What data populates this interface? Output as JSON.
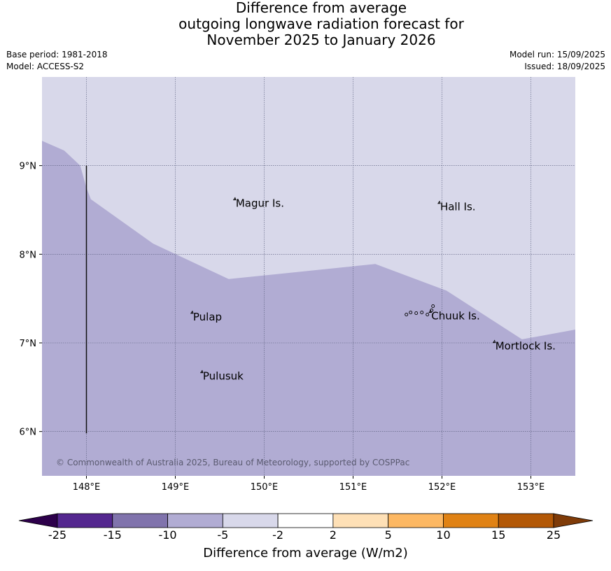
{
  "title": {
    "line1": "Difference from average",
    "line2": "outgoing longwave radiation forecast for",
    "line3": "November 2025 to January 2026"
  },
  "meta_left": {
    "base_period": "Base period: 1981-2018",
    "model": "Model: ACCESS-S2"
  },
  "meta_right": {
    "model_run": "Model run: 15/09/2025",
    "issued": "Issued: 18/09/2025"
  },
  "map": {
    "lon_range": [
      147.5,
      153.5
    ],
    "lat_range": [
      5.5,
      10.0
    ],
    "lon_ticks": [
      {
        "value": 148,
        "label": "148°E"
      },
      {
        "value": 149,
        "label": "149°E"
      },
      {
        "value": 150,
        "label": "150°E"
      },
      {
        "value": 151,
        "label": "151°E"
      },
      {
        "value": 152,
        "label": "152°E"
      },
      {
        "value": 153,
        "label": "153°E"
      }
    ],
    "lat_ticks": [
      {
        "value": 9,
        "label": "9°N"
      },
      {
        "value": 8,
        "label": "8°N"
      },
      {
        "value": 7,
        "label": "7°N"
      },
      {
        "value": 6,
        "label": "6°N"
      }
    ],
    "places": [
      {
        "name": "Magur Is.",
        "lon": 149.68,
        "lat": 8.55
      },
      {
        "name": "Hall Is.",
        "lon": 151.98,
        "lat": 8.51
      },
      {
        "name": "Pulap",
        "lon": 149.2,
        "lat": 7.27
      },
      {
        "name": "Chuuk Is.",
        "lon": 151.88,
        "lat": 7.28
      },
      {
        "name": "Mortlock Is.",
        "lon": 152.6,
        "lat": 6.94
      },
      {
        "name": "Pulusuk",
        "lon": 149.31,
        "lat": 6.6
      }
    ],
    "anomaly_bands": [
      {
        "range": "-5 to -2",
        "color": "#d8d8ea"
      },
      {
        "range": "-10 to -5",
        "color": "#b1acd3"
      }
    ],
    "boundary_between_bands": [
      [
        147.5,
        9.28
      ],
      [
        147.75,
        9.17
      ],
      [
        147.93,
        9.0
      ],
      [
        148.0,
        8.75
      ],
      [
        148.05,
        8.62
      ],
      [
        148.75,
        8.12
      ],
      [
        149.6,
        7.72
      ],
      [
        151.25,
        7.89
      ],
      [
        152.05,
        7.59
      ],
      [
        152.9,
        7.04
      ],
      [
        153.5,
        7.15
      ]
    ],
    "boundary_line": {
      "lon": 148.0,
      "lat_from": 5.98,
      "lat_to": 9.0
    },
    "copyright": "© Commonwealth of Australia 2025, Bureau of Meteorology, supported by COSPPac"
  },
  "colorbar": {
    "label": "Difference from average (W/m2)",
    "bins": [
      {
        "from": -25,
        "to": -15,
        "color": "#54278f"
      },
      {
        "from": -15,
        "to": -10,
        "color": "#8073ac"
      },
      {
        "from": -10,
        "to": -5,
        "color": "#b1acd3"
      },
      {
        "from": -5,
        "to": -2,
        "color": "#d8d8ea"
      },
      {
        "from": -2,
        "to": 2,
        "color": "#ffffff"
      },
      {
        "from": 2,
        "to": 5,
        "color": "#fee0b6"
      },
      {
        "from": 5,
        "to": 10,
        "color": "#fdb863"
      },
      {
        "from": 10,
        "to": 15,
        "color": "#e08214"
      },
      {
        "from": 15,
        "to": 25,
        "color": "#b35806"
      }
    ],
    "low_extend_color": "#2d004b",
    "high_extend_color": "#7f3b08",
    "tick_labels": [
      "-25",
      "-15",
      "-10",
      "-5",
      "-2",
      "2",
      "5",
      "10",
      "15",
      "25"
    ]
  }
}
